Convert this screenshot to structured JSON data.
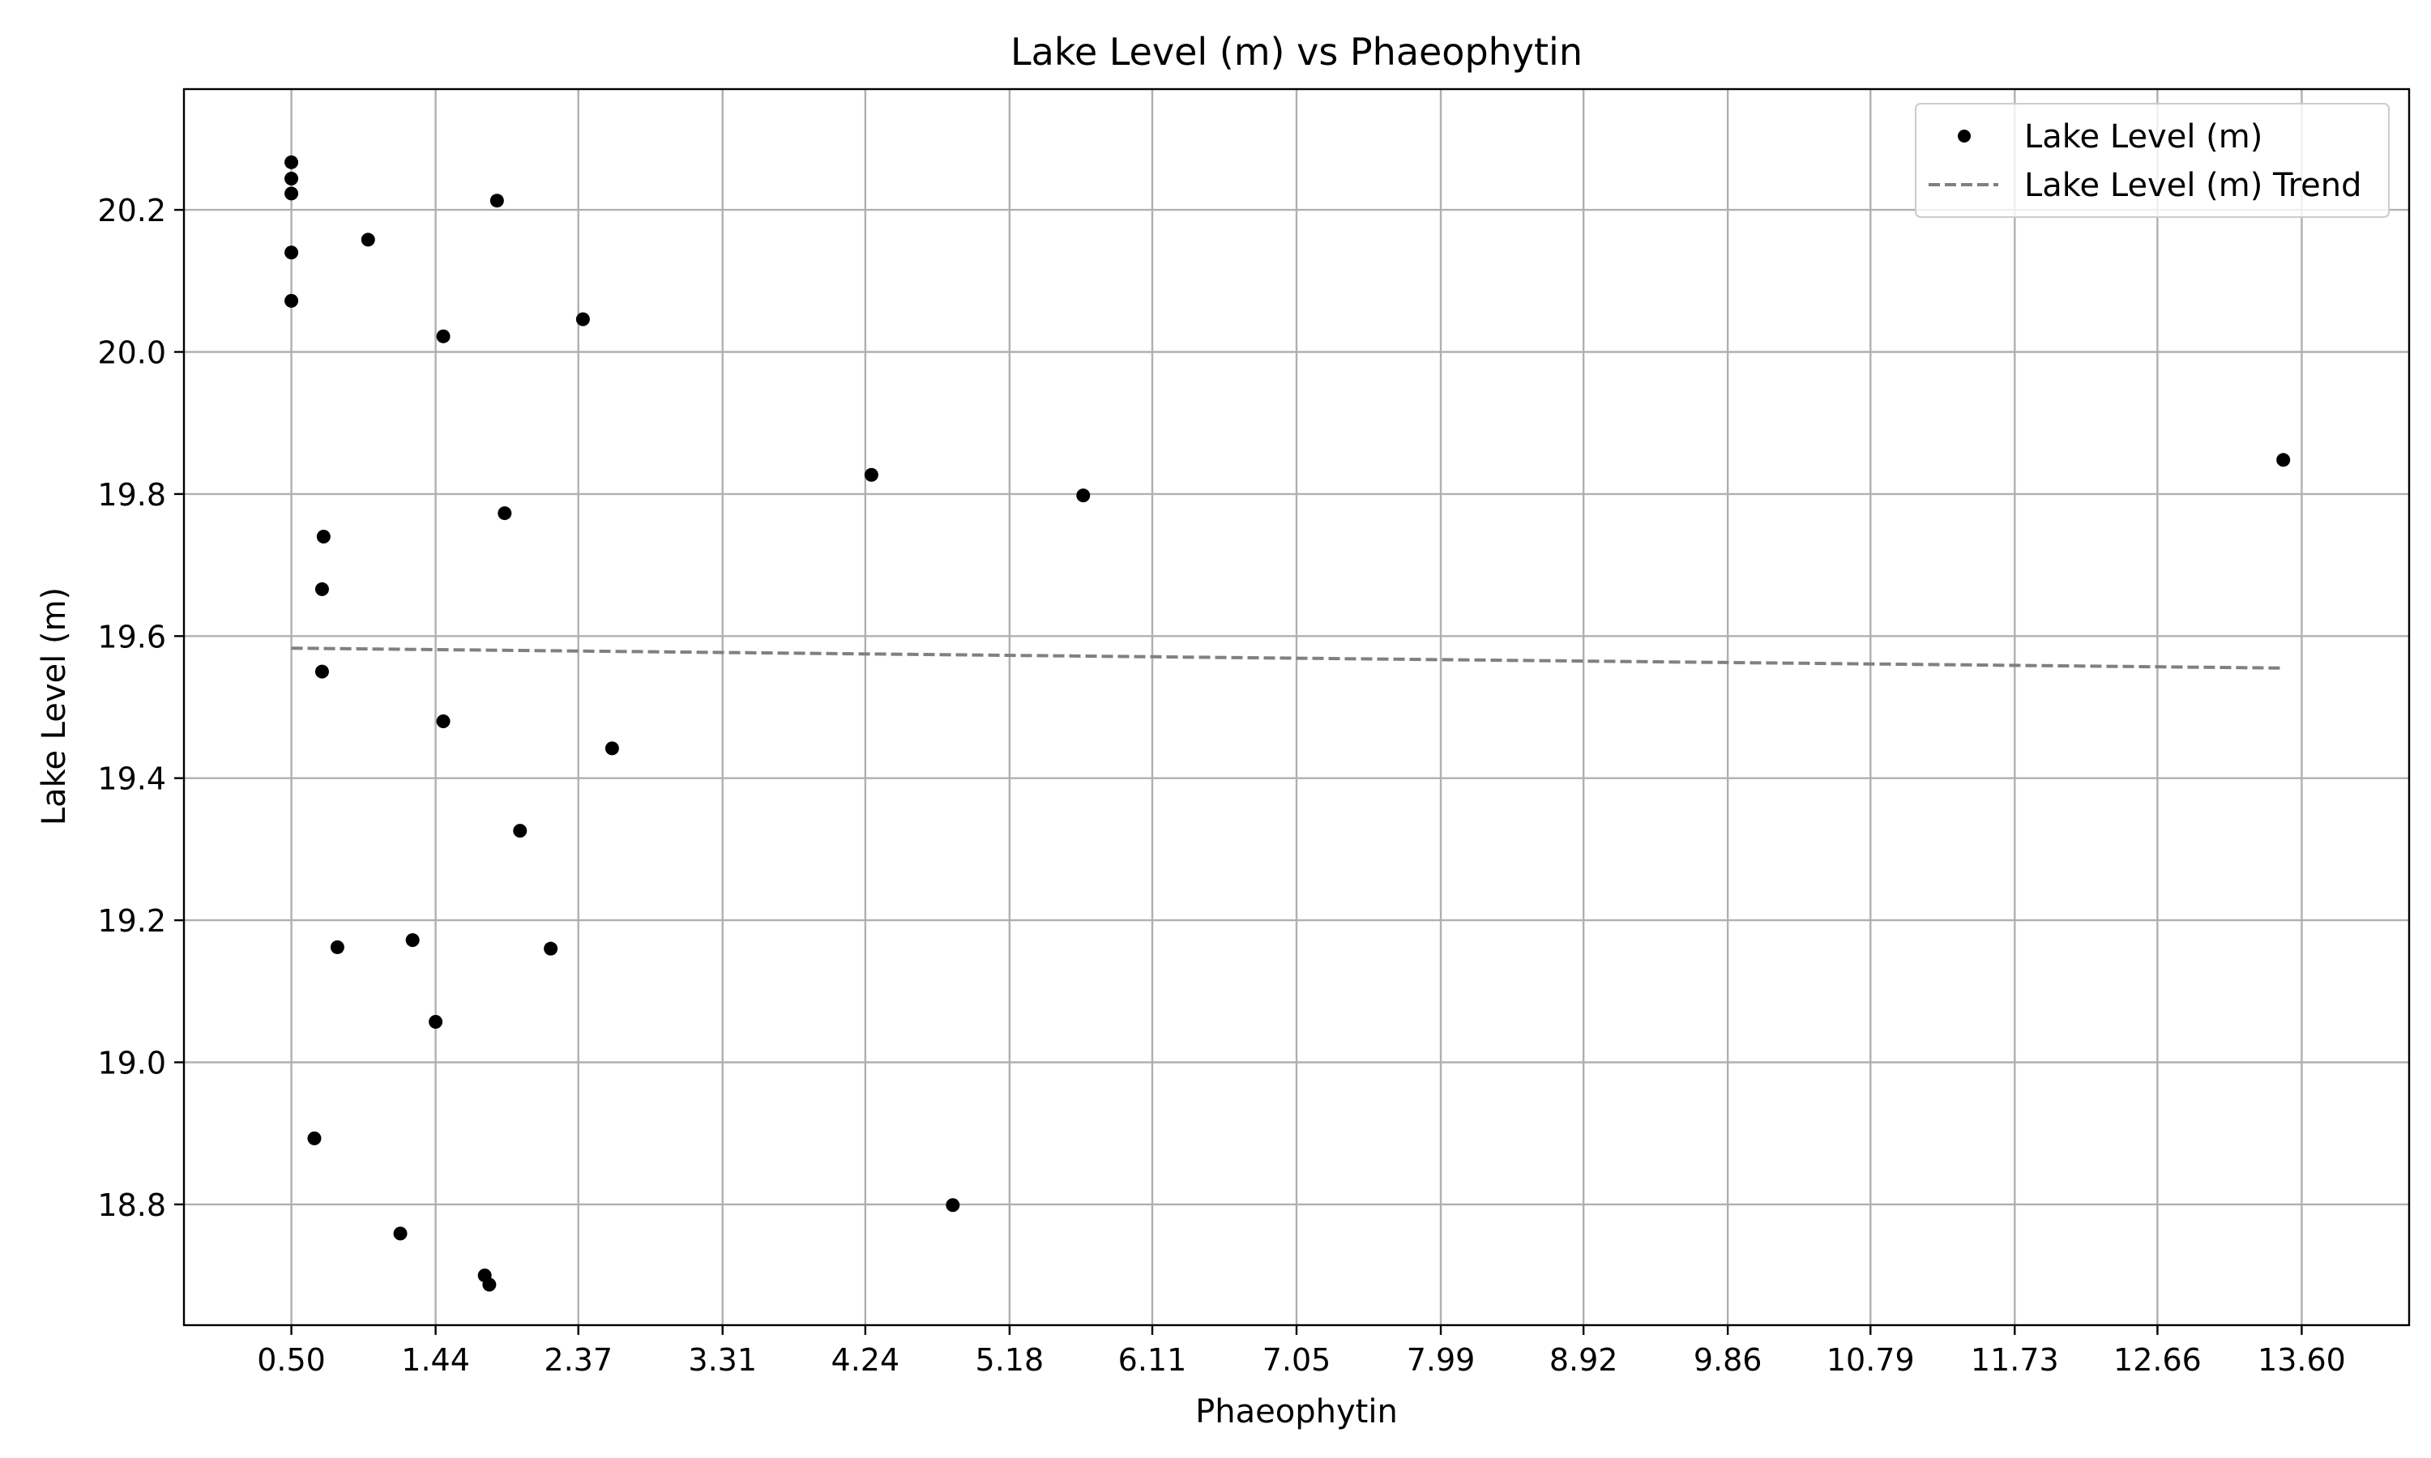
{
  "chart_data": {
    "type": "scatter",
    "title": "Lake Level (m) vs Phaeophytin",
    "xlabel": "Phaeophytin",
    "ylabel": "Lake Level (m)",
    "xlim": [
      -0.2,
      14.3
    ],
    "ylim": [
      18.63,
      20.37
    ],
    "xticks": [
      "0.50",
      "1.44",
      "2.37",
      "3.31",
      "4.24",
      "5.18",
      "6.11",
      "7.05",
      "7.99",
      "8.92",
      "9.86",
      "10.79",
      "11.73",
      "12.66",
      "13.60"
    ],
    "yticks": [
      "18.8",
      "19.0",
      "19.2",
      "19.4",
      "19.6",
      "19.8",
      "20.0",
      "20.2"
    ],
    "grid": true,
    "legend_position": "top-right",
    "series": [
      {
        "name": "Lake Level (m)",
        "kind": "scatter",
        "color": "#000000",
        "points": [
          {
            "x": 0.5,
            "y": 20.267
          },
          {
            "x": 0.5,
            "y": 20.244
          },
          {
            "x": 0.5,
            "y": 20.223
          },
          {
            "x": 0.5,
            "y": 20.14
          },
          {
            "x": 0.5,
            "y": 20.072
          },
          {
            "x": 1.0,
            "y": 20.158
          },
          {
            "x": 1.84,
            "y": 20.213
          },
          {
            "x": 1.49,
            "y": 20.022
          },
          {
            "x": 2.4,
            "y": 20.046
          },
          {
            "x": 0.71,
            "y": 19.74
          },
          {
            "x": 0.7,
            "y": 19.666
          },
          {
            "x": 0.7,
            "y": 19.55
          },
          {
            "x": 1.89,
            "y": 19.773
          },
          {
            "x": 4.28,
            "y": 19.827
          },
          {
            "x": 5.66,
            "y": 19.798
          },
          {
            "x": 13.48,
            "y": 19.848
          },
          {
            "x": 1.49,
            "y": 19.48
          },
          {
            "x": 2.59,
            "y": 19.442
          },
          {
            "x": 1.99,
            "y": 19.326
          },
          {
            "x": 0.8,
            "y": 19.162
          },
          {
            "x": 1.29,
            "y": 19.172
          },
          {
            "x": 2.19,
            "y": 19.16
          },
          {
            "x": 1.44,
            "y": 19.057
          },
          {
            "x": 0.65,
            "y": 18.893
          },
          {
            "x": 1.21,
            "y": 18.759
          },
          {
            "x": 4.81,
            "y": 18.799
          },
          {
            "x": 1.76,
            "y": 18.7
          },
          {
            "x": 1.79,
            "y": 18.687
          }
        ]
      },
      {
        "name": "Lake Level (m) Trend",
        "kind": "line",
        "style": "dashed",
        "color": "#808080",
        "x": [
          0.5,
          13.48
        ],
        "y": [
          19.583,
          19.555
        ]
      }
    ]
  }
}
